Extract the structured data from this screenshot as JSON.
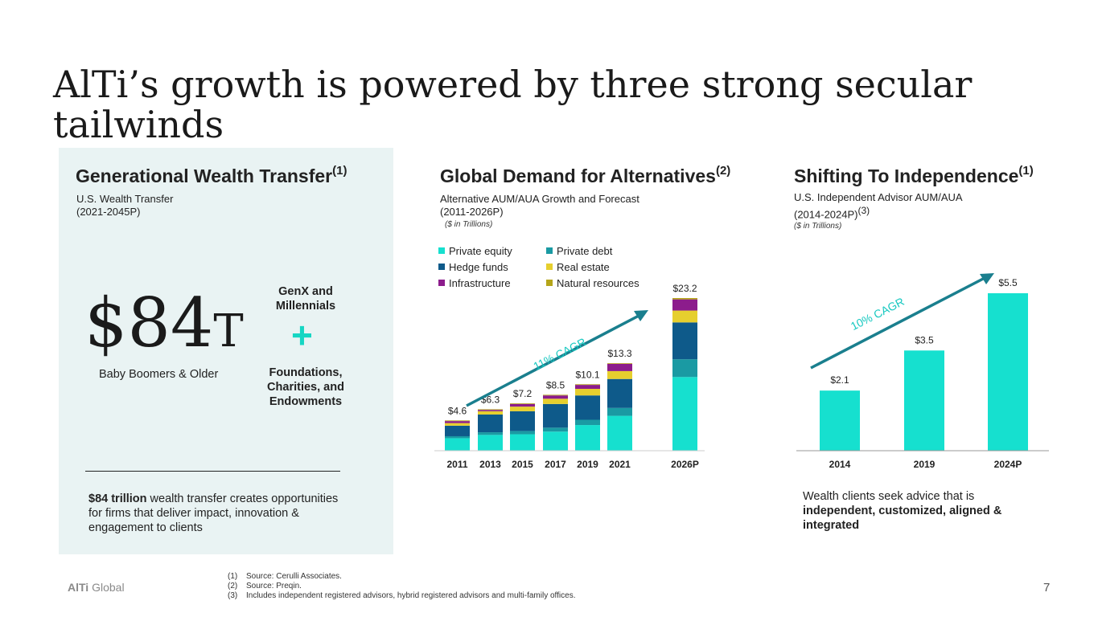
{
  "title": "AlTi’s growth is powered by three strong secular tailwinds",
  "left": {
    "heading": "Generational Wealth Transfer",
    "heading_sup": "(1)",
    "sub1": "U.S. Wealth Transfer",
    "sub2": "(2021-2045P)",
    "amount": "$84",
    "amount_unit": "T",
    "amount_caption": "Baby Boomers & Older",
    "genx": "GenX and Millennials",
    "plus": "+",
    "foundations": "Foundations, Charities, and Endowments",
    "summary_bold": "$84 trillion",
    "summary_rest": " wealth transfer creates opportunities for firms that deliver impact, innovation & engagement to clients"
  },
  "middle": {
    "heading": "Global Demand for Alternatives",
    "heading_sup": "(2)",
    "sub1": "Alternative AUM/AUA Growth and Forecast",
    "sub2": "(2011-2026P)",
    "note": "($ in Trillions)",
    "cagr": "11% CAGR"
  },
  "right": {
    "heading": "Shifting To Independence",
    "heading_sup": "(1)",
    "sub1": "U.S. Independent Advisor AUM/AUA",
    "sub2": "(2014-2024P)",
    "sub2_sup": "(3)",
    "note": "($ in Trillions)",
    "cagr": "10% CAGR",
    "caption_plain": "Wealth clients seek advice that is ",
    "caption_bold": "independent, customized, aligned & integrated"
  },
  "chart_data": [
    {
      "type": "bar",
      "stacked": true,
      "categories": [
        "2011",
        "2013",
        "2015",
        "2017",
        "2019",
        "2021",
        "2026P"
      ],
      "totals": [
        "$4.6",
        "$6.3",
        "$7.2",
        "$8.5",
        "$10.1",
        "$13.3",
        "$23.2"
      ],
      "series": [
        {
          "name": "Private equity",
          "color": "#16e0cf",
          "values": [
            1.9,
            2.4,
            2.5,
            2.9,
            3.9,
            5.3,
            11.2
          ]
        },
        {
          "name": "Private debt",
          "color": "#1a9aa3",
          "values": [
            0.3,
            0.4,
            0.5,
            0.6,
            0.8,
            1.2,
            2.7
          ]
        },
        {
          "name": "Hedge funds",
          "color": "#0e5a8a",
          "values": [
            1.6,
            2.7,
            3.0,
            3.6,
            3.7,
            4.4,
            5.6
          ]
        },
        {
          "name": "Real estate",
          "color": "#e6cf2e",
          "values": [
            0.4,
            0.5,
            0.7,
            0.8,
            1.0,
            1.2,
            1.8
          ]
        },
        {
          "name": "Infrastructure",
          "color": "#8c1c8c",
          "values": [
            0.3,
            0.2,
            0.4,
            0.5,
            0.6,
            1.1,
            1.7
          ]
        },
        {
          "name": "Natural resources",
          "color": "#b5a51a",
          "values": [
            0.1,
            0.1,
            0.1,
            0.1,
            0.1,
            0.1,
            0.2
          ]
        }
      ],
      "ylim": [
        0,
        23.2
      ]
    },
    {
      "type": "bar",
      "categories": [
        "2014",
        "2019",
        "2024P"
      ],
      "values": [
        2.1,
        3.5,
        5.5
      ],
      "labels": [
        "$2.1",
        "$3.5",
        "$5.5"
      ],
      "color": "#16e0cf",
      "ylim": [
        0,
        5.5
      ]
    }
  ],
  "footer": {
    "brand_bold": "AlTi",
    "brand_rest": " Global",
    "page": "7",
    "notes": [
      {
        "num": "(1)",
        "text": "Source: Cerulli Associates."
      },
      {
        "num": "(2)",
        "text": "Source: Preqin."
      },
      {
        "num": "(3)",
        "text": "Includes independent registered advisors, hybrid registered advisors and multi-family offices."
      }
    ]
  }
}
